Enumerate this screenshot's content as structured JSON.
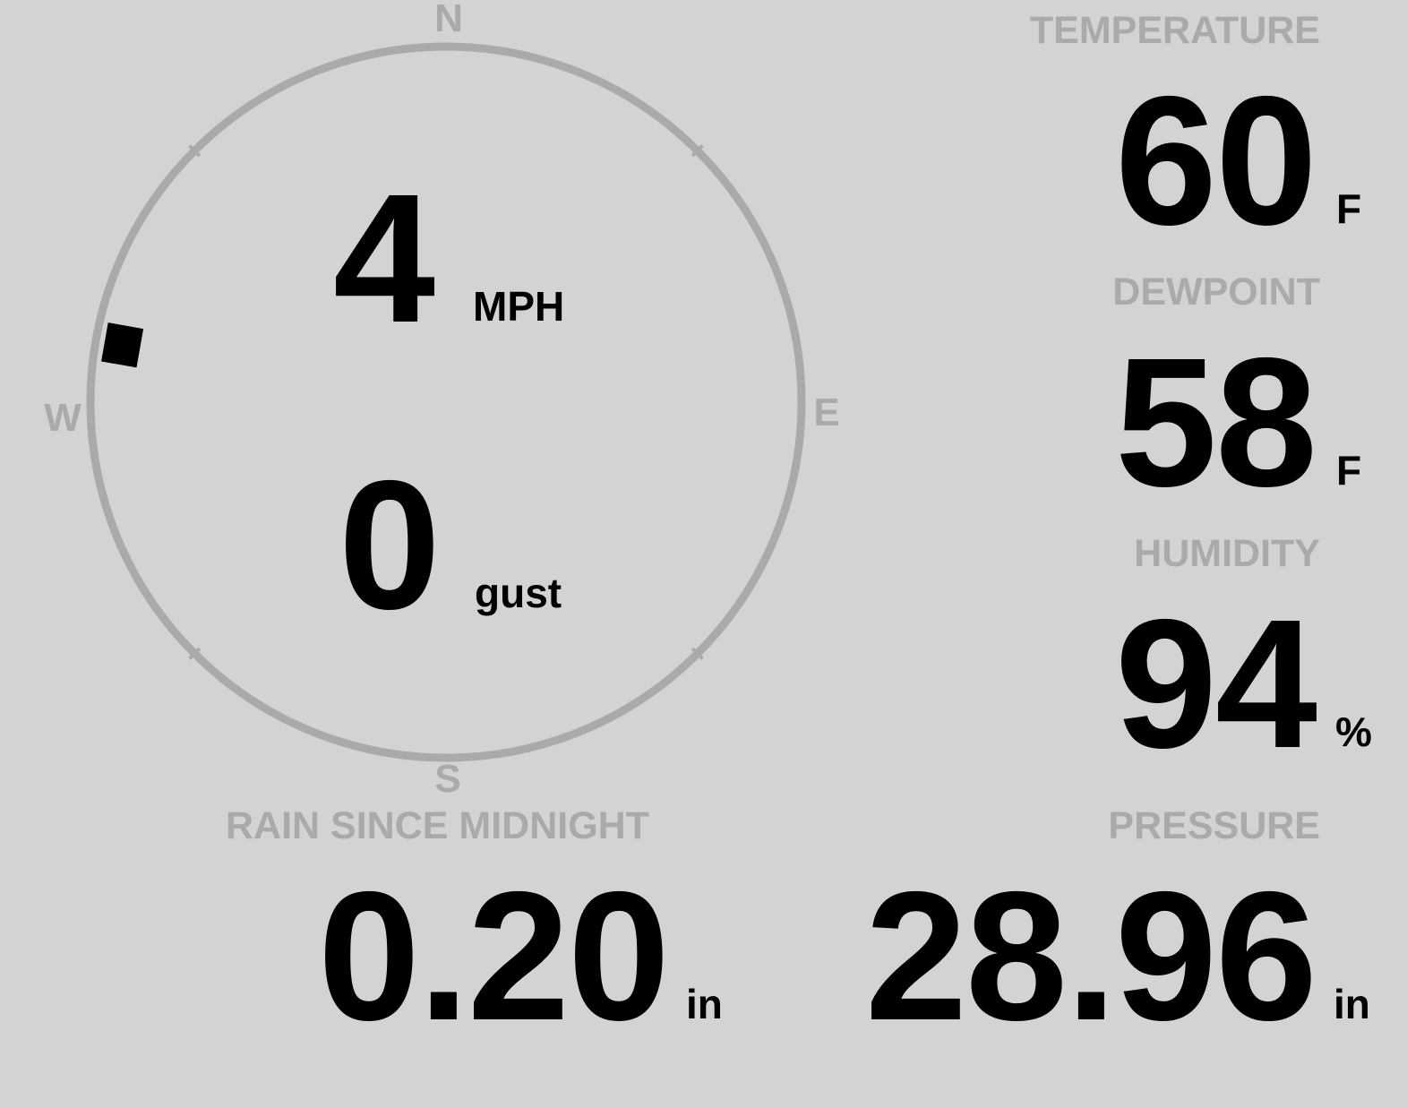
{
  "wind": {
    "speed": "4",
    "speed_unit": "MPH",
    "gust": "0",
    "gust_label": "gust",
    "direction_degrees": 280,
    "compass": {
      "north": "N",
      "south": "S",
      "east": "E",
      "west": "W"
    }
  },
  "temperature": {
    "label": "TEMPERATURE",
    "value": "60",
    "unit": "F"
  },
  "dewpoint": {
    "label": "DEWPOINT",
    "value": "58",
    "unit": "F"
  },
  "humidity": {
    "label": "HUMIDITY",
    "value": "94",
    "unit": "%"
  },
  "pressure": {
    "label": "PRESSURE",
    "value": "28.96",
    "unit": "in"
  },
  "rain": {
    "label": "RAIN SINCE MIDNIGHT",
    "value": "0.20",
    "unit": "in"
  },
  "colors": {
    "background": "#d3d3d3",
    "label": "#aaaaaa",
    "value": "#000000",
    "compass_ring": "#aaaaaa",
    "wind_marker": "#000000"
  }
}
